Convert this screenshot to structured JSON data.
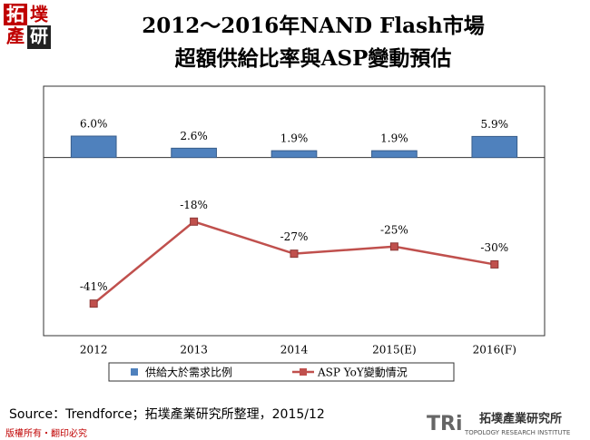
{
  "logo": [
    "拓",
    "墣",
    "產",
    "研"
  ],
  "chart_data": {
    "type": "bar-line",
    "title": [
      "2012～2016年NAND Flash市場",
      "超額供給比率與ASP變動預估"
    ],
    "categories": [
      "2012",
      "2013",
      "2014",
      "2015(E)",
      "2016(F)"
    ],
    "ylim": [
      -50,
      20
    ],
    "series": [
      {
        "name": "供給大於需求比例",
        "type": "bar",
        "color": "#4f81bd",
        "values": [
          6.0,
          2.6,
          1.9,
          1.9,
          5.9
        ],
        "value_labels": [
          "6.0%",
          "2.6%",
          "1.9%",
          "1.9%",
          "5.9%"
        ]
      },
      {
        "name": "ASP YoY變動情況",
        "type": "line",
        "color": "#c0504d",
        "values": [
          -41,
          -18,
          -27,
          -25,
          -30
        ],
        "value_labels": [
          "-41%",
          "-18%",
          "-27%",
          "-25%",
          "-30%"
        ]
      }
    ]
  },
  "source": "Source：Trendforce；拓墣產業研究所整理，2015/12",
  "footer": "版權所有・翻印必究",
  "brand": {
    "mark": "TRi",
    "name": "拓墣產業研究所",
    "subtitle": "TOPOLOGY RESEARCH INSTITUTE"
  }
}
